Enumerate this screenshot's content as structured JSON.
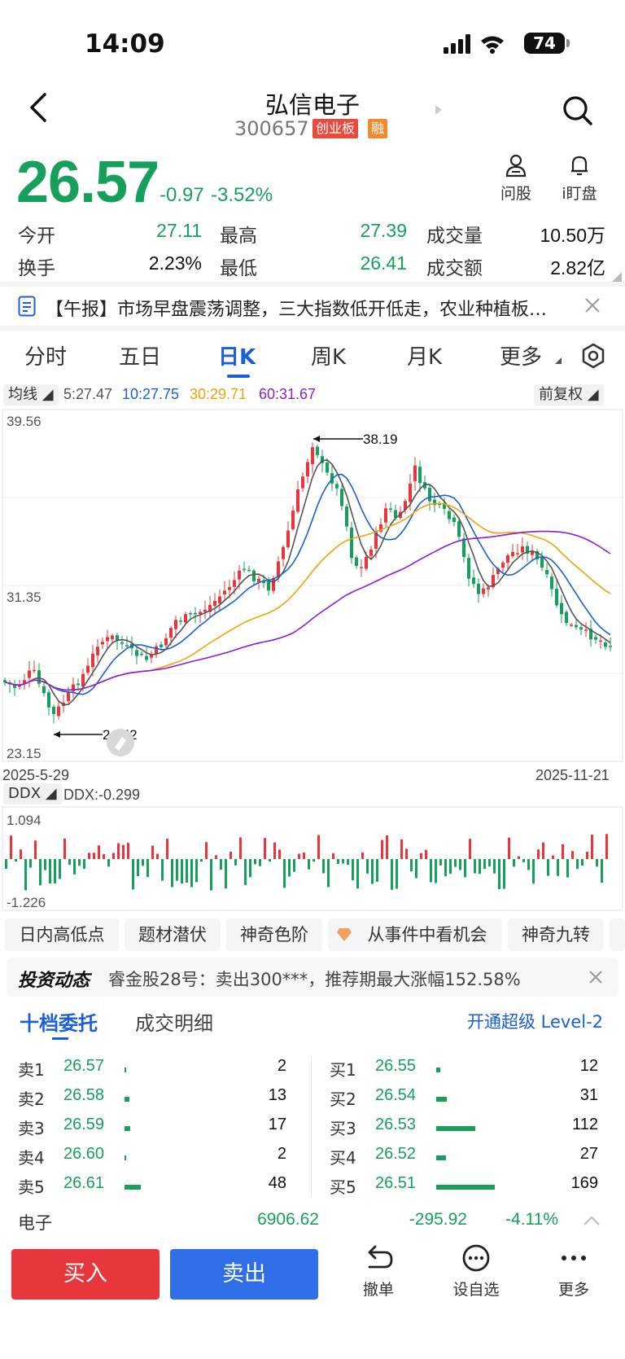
{
  "status_bar": {
    "time": "14:09",
    "battery": "74"
  },
  "header": {
    "title": "弘信电子",
    "code": "300657",
    "tag_board": "创业板",
    "tag_margin": "融"
  },
  "quote": {
    "price": "26.57",
    "change": "-0.97",
    "change_pct": "-3.52%",
    "ask_stock_label": "问股",
    "watch_label": "i盯盘",
    "rows": [
      [
        {
          "label": "今开",
          "value": "27.11"
        },
        {
          "label": "最高",
          "value": "27.39"
        },
        {
          "label": "成交量",
          "value": "10.50万"
        }
      ],
      [
        {
          "label": "换手",
          "value": "2.23%"
        },
        {
          "label": "最低",
          "value": "26.41"
        },
        {
          "label": "成交额",
          "value": "2.82亿"
        }
      ]
    ]
  },
  "news": {
    "text": "【午报】市场早盘震荡调整，三大指数低开低走，农业种植板…"
  },
  "tabs": [
    "分时",
    "五日",
    "日K",
    "周K",
    "月K",
    "更多"
  ],
  "kline": {
    "ma_chip": "均线",
    "adjust_chip": "前复权",
    "ma": [
      {
        "label": "5:27.47",
        "color": "#555555"
      },
      {
        "label": "10:27.75",
        "color": "#1a5fd6"
      },
      {
        "label": "30:29.71",
        "color": "#f0a30a"
      },
      {
        "label": "60:31.67",
        "color": "#8a1fd0"
      }
    ],
    "y_top": "39.56",
    "y_mid": "31.35",
    "y_bot": "23.15",
    "high_mark": "38.19",
    "low_mark": "24.52",
    "date_start": "2025-5-29",
    "date_end": "2025-11-21"
  },
  "ddx": {
    "chip": "DDX",
    "value_label": "DDX:-0.299",
    "top": "1.094",
    "bottom": "-1.226"
  },
  "features": [
    "日内高低点",
    "题材潜伏",
    "神奇色阶",
    "从事件中看机会",
    "神奇九转"
  ],
  "invest": {
    "title": "投资动态",
    "text": "睿金股28号：卖出300***，推荐期最大涨幅152.58%"
  },
  "orderbook": {
    "tab_ten": "十档委托",
    "tab_detail": "成交明细",
    "level2": "开通超级 Level-2",
    "asks": [
      {
        "label": "卖1",
        "price": "26.57",
        "vol": "2",
        "bar": 2
      },
      {
        "label": "卖2",
        "price": "26.58",
        "vol": "13",
        "bar": 13
      },
      {
        "label": "卖3",
        "price": "26.59",
        "vol": "17",
        "bar": 17
      },
      {
        "label": "卖4",
        "price": "26.60",
        "vol": "2",
        "bar": 2
      },
      {
        "label": "卖5",
        "price": "26.61",
        "vol": "48",
        "bar": 48
      }
    ],
    "bids": [
      {
        "label": "买1",
        "price": "26.55",
        "vol": "12",
        "bar": 12
      },
      {
        "label": "买2",
        "price": "26.54",
        "vol": "31",
        "bar": 31
      },
      {
        "label": "买3",
        "price": "26.53",
        "vol": "112",
        "bar": 112
      },
      {
        "label": "买4",
        "price": "26.52",
        "vol": "27",
        "bar": 27
      },
      {
        "label": "买5",
        "price": "26.51",
        "vol": "169",
        "bar": 169
      }
    ]
  },
  "sector": {
    "name": "电子",
    "index": "6906.62",
    "change": "-295.92",
    "pct": "-4.11%"
  },
  "bottom": {
    "buy": "买入",
    "sell": "卖出",
    "cancel": "撤单",
    "watch": "设自选",
    "more": "更多"
  },
  "colors": {
    "up": "#e8373c",
    "down": "#17a05c",
    "accent": "#1a5fd6"
  }
}
